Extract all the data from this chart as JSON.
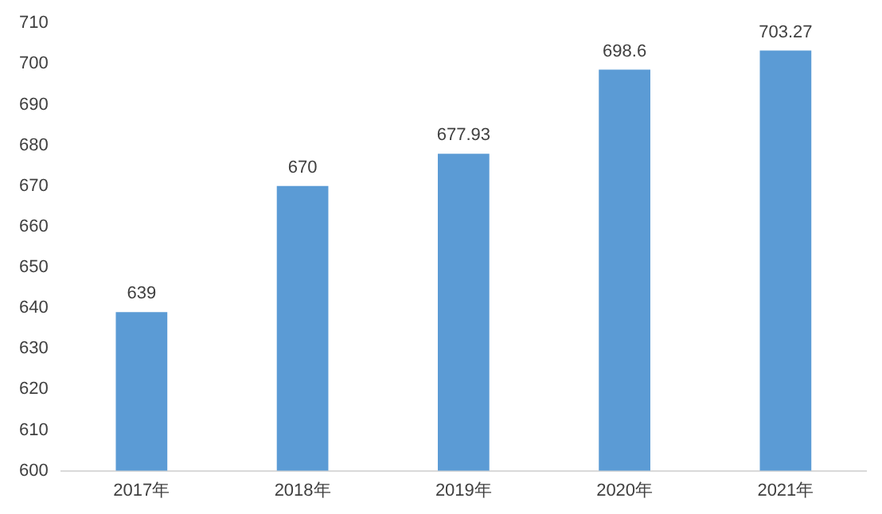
{
  "chart_data": {
    "type": "bar",
    "categories": [
      "2017年",
      "2018年",
      "2019年",
      "2020年",
      "2021年"
    ],
    "values": [
      639,
      670,
      677.93,
      698.6,
      703.27
    ],
    "color": "#5b9bd5",
    "ylim": [
      600,
      710
    ],
    "yticks": [
      600,
      610,
      620,
      630,
      640,
      650,
      660,
      670,
      680,
      690,
      700,
      710
    ],
    "grid": false,
    "data_labels": true
  }
}
